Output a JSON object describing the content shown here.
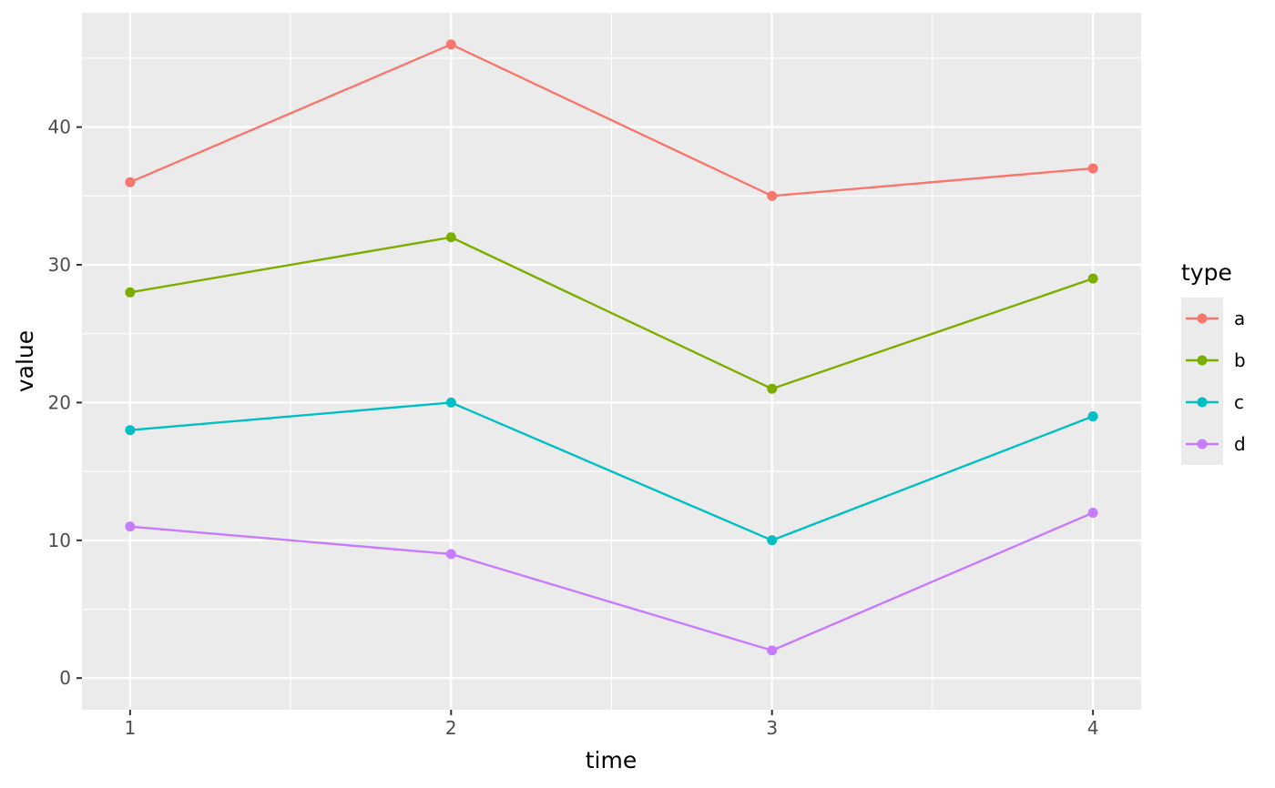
{
  "chart_data": {
    "type": "line",
    "title": "",
    "xlabel": "time",
    "ylabel": "value",
    "x": [
      1,
      2,
      3,
      4
    ],
    "x_ticks": [
      "1",
      "2",
      "3",
      "4"
    ],
    "y_ticks": [
      "0",
      "10",
      "20",
      "30",
      "40"
    ],
    "xlim": [
      0.85,
      4.15
    ],
    "ylim": [
      -2.3,
      48.3
    ],
    "grid": true,
    "legend": {
      "title": "type",
      "placement": "right"
    },
    "panel_background": "#ebebeb",
    "series": [
      {
        "name": "a",
        "color": "#F8766D",
        "values": [
          36,
          46,
          35,
          37
        ]
      },
      {
        "name": "b",
        "color": "#7CAE00",
        "values": [
          28,
          32,
          21,
          29
        ]
      },
      {
        "name": "c",
        "color": "#00BFC4",
        "values": [
          18,
          20,
          10,
          19
        ]
      },
      {
        "name": "d",
        "color": "#C77CFF",
        "values": [
          11,
          9,
          2,
          12
        ]
      }
    ]
  }
}
